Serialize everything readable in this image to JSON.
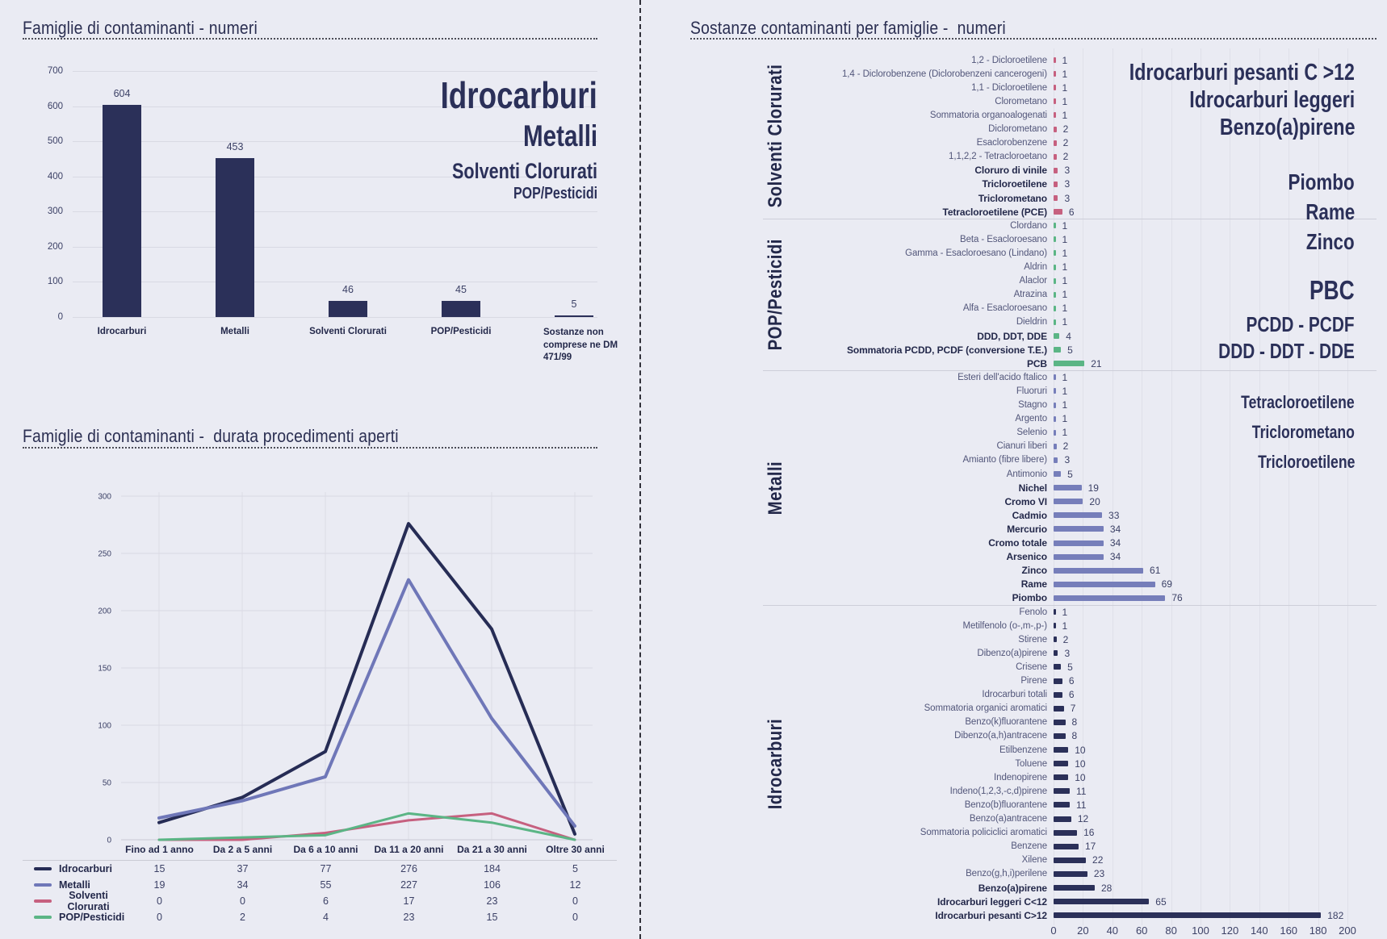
{
  "page": {
    "background": "#eaebf3",
    "accent": "#2b3059",
    "family_colors": {
      "Idrocarburi": "#2b3059",
      "Metalli": "#767eba",
      "Solventi Clorurati": "#c6607f",
      "POP/Pesticidi": "#5bb585"
    }
  },
  "left_top": {
    "overlay_labels": [
      "Idrocarburi",
      "Metalli",
      "Solventi Clorurati",
      "POP/Pesticidi"
    ]
  },
  "right_panel": {
    "overlay_groups": [
      {
        "lines": [
          "Idrocarburi pesanti C >12",
          "Idrocarburi leggeri",
          "Benzo(a)pirene"
        ]
      },
      {
        "lines": [
          "Piombo",
          "Rame",
          "Zinco"
        ]
      },
      {
        "lines": [
          "PBC",
          "PCDD - PCDF",
          "DDD - DDT - DDE"
        ]
      },
      {
        "lines": [
          "Tetracloroetilene",
          "Triclorometano",
          "Tricloroetilene"
        ]
      }
    ]
  },
  "chart_data": [
    {
      "type": "bar",
      "title": "Famiglie di contaminanti - numeri",
      "categories": [
        "Idrocarburi",
        "Metalli",
        "Solventi Clorurati",
        "POP/Pesticidi",
        "Sostanze non comprese ne DM 471/99"
      ],
      "values": [
        604,
        453,
        46,
        45,
        5
      ],
      "bar_color": "#2b3059",
      "ylim": [
        0,
        700
      ],
      "ytick_step": 100,
      "grid": true,
      "value_labels": true
    },
    {
      "type": "line",
      "title": "Famiglie di contaminanti -  durata procedimenti aperti",
      "categories": [
        "Fino ad 1 anno",
        "Da 2 a 5 anni",
        "Da 6 a 10 anni",
        "Da 11 a 20 anni",
        "Da 21 a 30 anni",
        "Oltre 30 anni"
      ],
      "series": [
        {
          "name": "Idrocarburi",
          "color": "#262c55",
          "values": [
            15,
            37,
            77,
            276,
            184,
            5
          ]
        },
        {
          "name": "Metalli",
          "color": "#6f77b8",
          "values": [
            19,
            34,
            55,
            227,
            106,
            12
          ]
        },
        {
          "name": "Solventi Clorurati",
          "color": "#c6607f",
          "values": [
            0,
            0,
            6,
            17,
            23,
            0
          ]
        },
        {
          "name": "POP/Pesticidi",
          "color": "#5bb585",
          "values": [
            0,
            2,
            4,
            23,
            15,
            0
          ]
        }
      ],
      "ylim": [
        0,
        300
      ],
      "ytick_step": 50,
      "grid": true,
      "legend_position": "bottom-table"
    },
    {
      "type": "bar",
      "orientation": "horizontal",
      "title": "Sostanze contaminanti per famiglie -  numeri",
      "xlim": [
        0,
        200
      ],
      "xtick_step": 20,
      "grid": true,
      "groups": [
        {
          "family": "Solventi Clorurati",
          "color": "#c6607f",
          "items": [
            {
              "label": "1,2 - Dicloroetilene",
              "value": 1,
              "bold": false
            },
            {
              "label": "1,4 - Diclorobenzene (Diclorobenzeni cancerogeni)",
              "value": 1,
              "bold": false
            },
            {
              "label": "1,1 - Dicloroetilene",
              "value": 1,
              "bold": false
            },
            {
              "label": "Clorometano",
              "value": 1,
              "bold": false
            },
            {
              "label": "Sommatoria organoalogenati",
              "value": 1,
              "bold": false
            },
            {
              "label": "Diclorometano",
              "value": 2,
              "bold": false
            },
            {
              "label": "Esaclorobenzene",
              "value": 2,
              "bold": false
            },
            {
              "label": "1,1,2,2 - Tetracloroetano",
              "value": 2,
              "bold": false
            },
            {
              "label": "Cloruro di vinile",
              "value": 3,
              "bold": true
            },
            {
              "label": "Tricloroetilene",
              "value": 3,
              "bold": true
            },
            {
              "label": "Triclorometano",
              "value": 3,
              "bold": true
            },
            {
              "label": "Tetracloroetilene (PCE)",
              "value": 6,
              "bold": true
            }
          ]
        },
        {
          "family": "POP/Pesticidi",
          "color": "#5bb585",
          "items": [
            {
              "label": "Clordano",
              "value": 1,
              "bold": false
            },
            {
              "label": "Beta - Esacloroesano",
              "value": 1,
              "bold": false
            },
            {
              "label": "Gamma - Esacloroesano (Lindano)",
              "value": 1,
              "bold": false
            },
            {
              "label": "Aldrin",
              "value": 1,
              "bold": false
            },
            {
              "label": "Alaclor",
              "value": 1,
              "bold": false
            },
            {
              "label": "Atrazina",
              "value": 1,
              "bold": false
            },
            {
              "label": "Alfa - Esacloroesano",
              "value": 1,
              "bold": false
            },
            {
              "label": "Dieldrin",
              "value": 1,
              "bold": false
            },
            {
              "label": "DDD, DDT, DDE",
              "value": 4,
              "bold": true
            },
            {
              "label": "Sommatoria PCDD, PCDF (conversione T.E.)",
              "value": 5,
              "bold": true
            },
            {
              "label": "PCB",
              "value": 21,
              "bold": true
            }
          ]
        },
        {
          "family": "Metalli",
          "color": "#767eba",
          "items": [
            {
              "label": "Esteri dell'acido ftalico",
              "value": 1,
              "bold": false
            },
            {
              "label": "Fluoruri",
              "value": 1,
              "bold": false
            },
            {
              "label": "Stagno",
              "value": 1,
              "bold": false
            },
            {
              "label": "Argento",
              "value": 1,
              "bold": false
            },
            {
              "label": "Selenio",
              "value": 1,
              "bold": false
            },
            {
              "label": "Cianuri liberi",
              "value": 2,
              "bold": false
            },
            {
              "label": "Amianto (fibre libere)",
              "value": 3,
              "bold": false
            },
            {
              "label": "Antimonio",
              "value": 5,
              "bold": false
            },
            {
              "label": "Nichel",
              "value": 19,
              "bold": true
            },
            {
              "label": "Cromo VI",
              "value": 20,
              "bold": true
            },
            {
              "label": "Cadmio",
              "value": 33,
              "bold": true
            },
            {
              "label": "Mercurio",
              "value": 34,
              "bold": true
            },
            {
              "label": "Cromo totale",
              "value": 34,
              "bold": true
            },
            {
              "label": "Arsenico",
              "value": 34,
              "bold": true
            },
            {
              "label": "Zinco",
              "value": 61,
              "bold": true
            },
            {
              "label": "Rame",
              "value": 69,
              "bold": true
            },
            {
              "label": "Piombo",
              "value": 76,
              "bold": true
            }
          ]
        },
        {
          "family": "Idrocarburi",
          "color": "#2b3059",
          "items": [
            {
              "label": "Fenolo",
              "value": 1,
              "bold": false
            },
            {
              "label": "Metilfenolo (o-,m-,p-)",
              "value": 1,
              "bold": false
            },
            {
              "label": "Stirene",
              "value": 2,
              "bold": false
            },
            {
              "label": "Dibenzo(a)pirene",
              "value": 3,
              "bold": false
            },
            {
              "label": "Crisene",
              "value": 5,
              "bold": false
            },
            {
              "label": "Pirene",
              "value": 6,
              "bold": false
            },
            {
              "label": "Idrocarburi totali",
              "value": 6,
              "bold": false
            },
            {
              "label": "Sommatoria organici aromatici",
              "value": 7,
              "bold": false
            },
            {
              "label": "Benzo(k)fluorantene",
              "value": 8,
              "bold": false
            },
            {
              "label": "Dibenzo(a,h)antracene",
              "value": 8,
              "bold": false
            },
            {
              "label": "Etilbenzene",
              "value": 10,
              "bold": false
            },
            {
              "label": "Toluene",
              "value": 10,
              "bold": false
            },
            {
              "label": "Indenopirene",
              "value": 10,
              "bold": false
            },
            {
              "label": "Indeno(1,2,3,-c,d)pirene",
              "value": 11,
              "bold": false
            },
            {
              "label": "Benzo(b)fluorantene",
              "value": 11,
              "bold": false
            },
            {
              "label": "Benzo(a)antracene",
              "value": 12,
              "bold": false
            },
            {
              "label": "Sommatoria policiclici aromatici",
              "value": 16,
              "bold": false
            },
            {
              "label": "Benzene",
              "value": 17,
              "bold": false
            },
            {
              "label": "Xilene",
              "value": 22,
              "bold": false
            },
            {
              "label": "Benzo(g,h,i)perilene",
              "value": 23,
              "bold": false
            },
            {
              "label": "Benzo(a)pirene",
              "value": 28,
              "bold": true
            },
            {
              "label": "Idrocarburi leggeri C<12",
              "value": 65,
              "bold": true
            },
            {
              "label": "Idrocarburi pesanti C>12",
              "value": 182,
              "bold": true
            }
          ]
        }
      ]
    }
  ]
}
